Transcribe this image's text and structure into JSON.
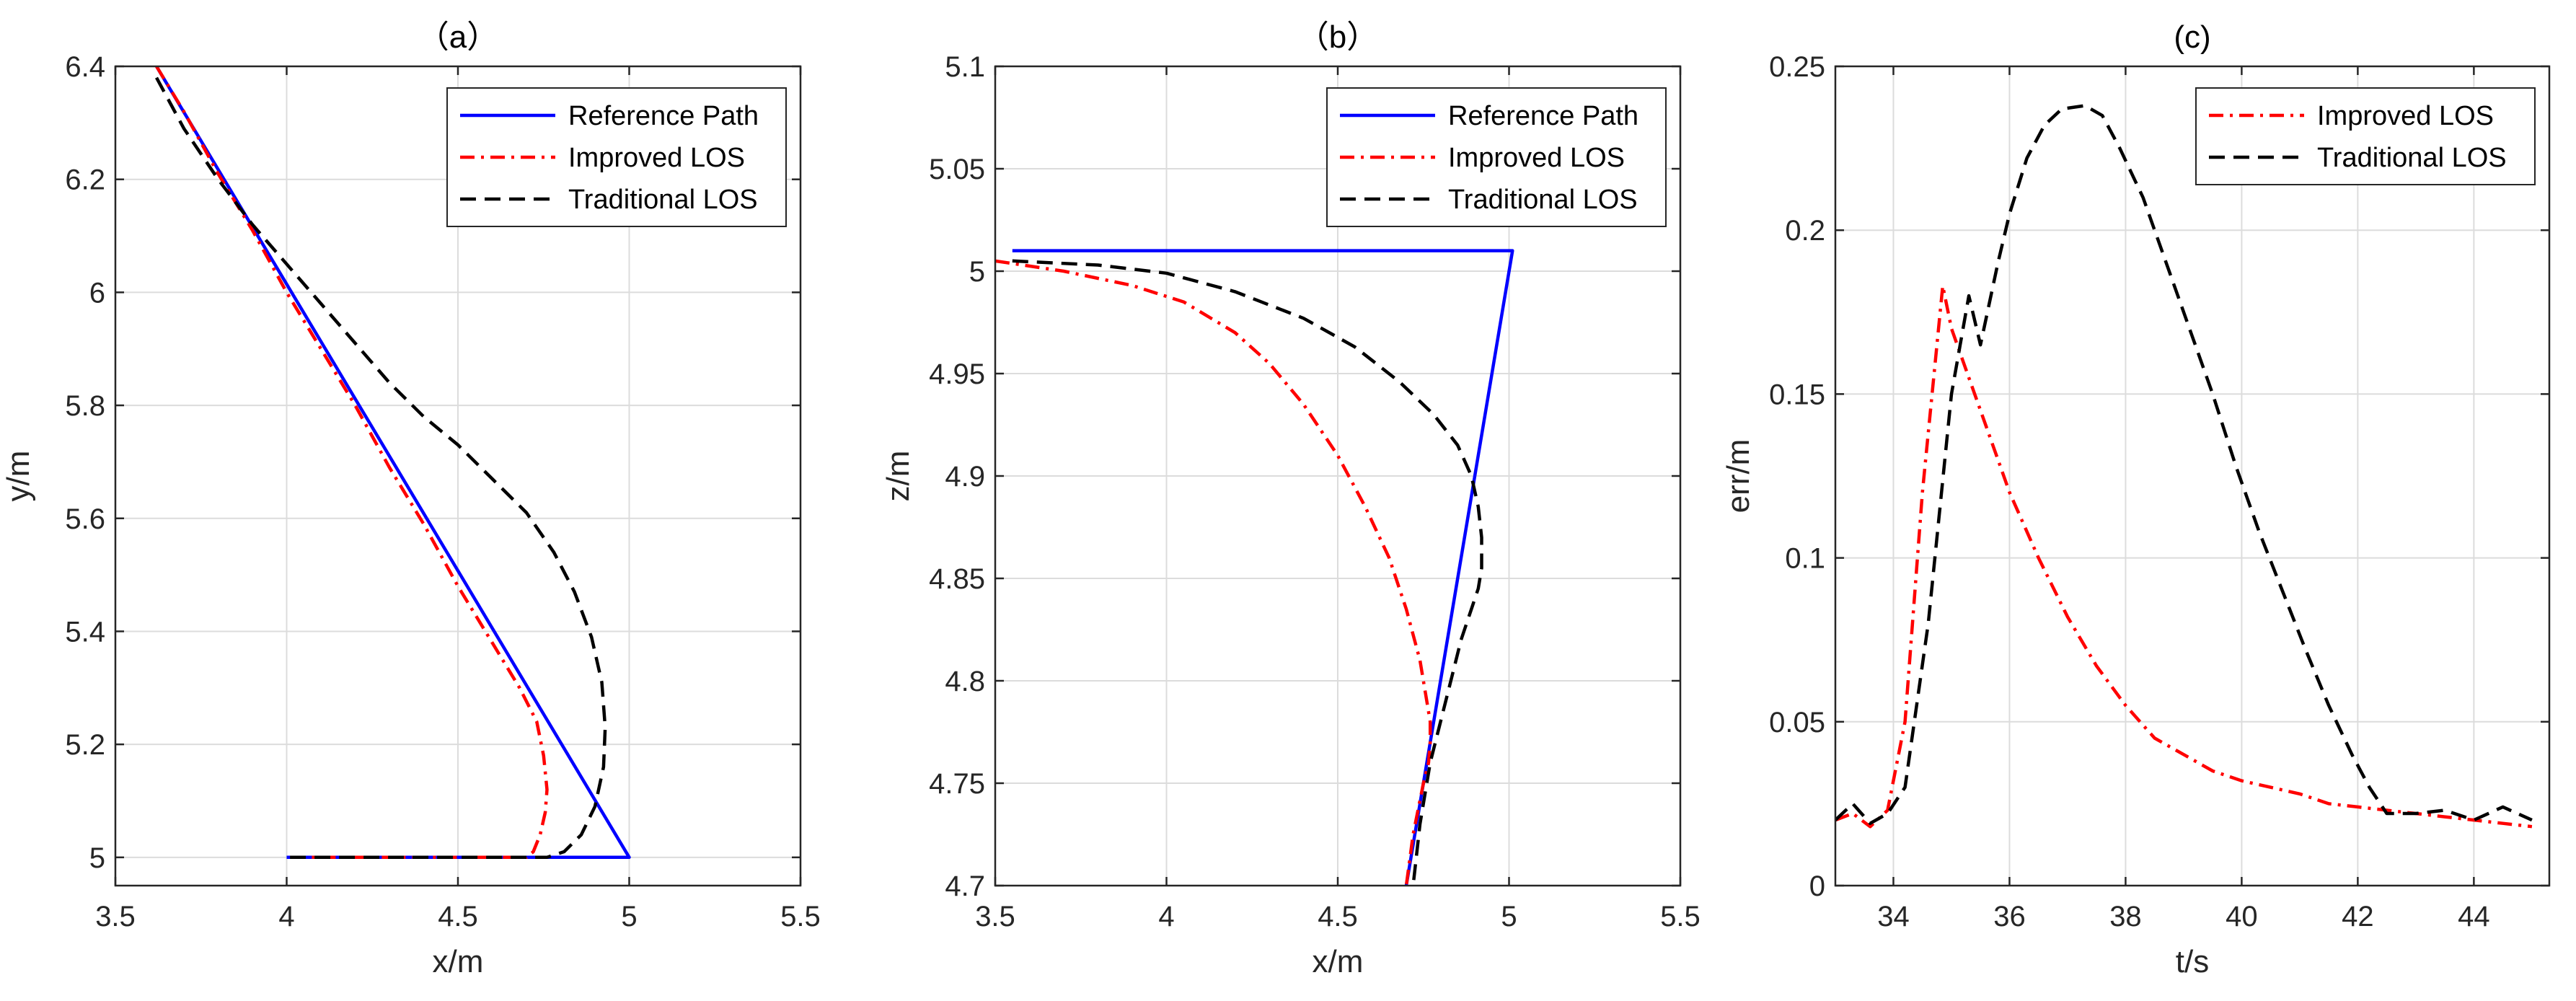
{
  "chart_data": [
    {
      "type": "line",
      "title": "（a）",
      "xlabel": "x/m",
      "ylabel": "y/m",
      "xlim": [
        3.5,
        5.5
      ],
      "ylim": [
        4.95,
        6.4
      ],
      "xticks": [
        "3.5",
        "4",
        "4.5",
        "5",
        "5.5"
      ],
      "yticks": [
        "5",
        "5.2",
        "5.4",
        "5.6",
        "5.8",
        "6",
        "6.2",
        "6.4"
      ],
      "legend": [
        "Reference Path",
        "Improved LOS",
        "Traditional LOS"
      ],
      "legend_position": "top-right",
      "grid": true,
      "series": [
        {
          "name": "Reference Path",
          "color": "#0000ff",
          "style": "solid",
          "x": [
            4.0,
            5.0,
            3.62
          ],
          "y": [
            5.0,
            5.0,
            6.4
          ]
        },
        {
          "name": "Improved LOS",
          "color": "#ff0000",
          "style": "dashdot",
          "x": [
            3.62,
            3.7,
            3.8,
            3.9,
            4.0,
            4.1,
            4.2,
            4.3,
            4.4,
            4.5,
            4.6,
            4.68,
            4.73,
            4.75,
            4.76,
            4.755,
            4.74,
            4.72,
            4.7,
            4.6,
            4.4,
            4.2,
            4.0
          ],
          "y": [
            6.4,
            6.32,
            6.21,
            6.11,
            6.0,
            5.9,
            5.8,
            5.69,
            5.59,
            5.48,
            5.38,
            5.3,
            5.24,
            5.18,
            5.12,
            5.08,
            5.04,
            5.01,
            5.0,
            5.0,
            5.0,
            5.0,
            5.0
          ]
        },
        {
          "name": "Traditional LOS",
          "color": "#000000",
          "style": "dashed",
          "x": [
            3.62,
            3.7,
            3.8,
            3.9,
            4.0,
            4.1,
            4.2,
            4.3,
            4.4,
            4.5,
            4.6,
            4.7,
            4.78,
            4.84,
            4.89,
            4.92,
            4.93,
            4.925,
            4.9,
            4.86,
            4.81,
            4.76,
            4.7,
            4.6,
            4.4,
            4.2,
            4.0
          ],
          "y": [
            6.38,
            6.29,
            6.2,
            6.12,
            6.05,
            5.98,
            5.91,
            5.84,
            5.78,
            5.73,
            5.67,
            5.61,
            5.54,
            5.47,
            5.39,
            5.31,
            5.23,
            5.16,
            5.09,
            5.04,
            5.01,
            5.0,
            5.0,
            5.0,
            5.0,
            5.0,
            5.0
          ]
        }
      ]
    },
    {
      "type": "line",
      "title": "（b）",
      "xlabel": "x/m",
      "ylabel": "z/m",
      "xlim": [
        3.5,
        5.5
      ],
      "ylim": [
        4.7,
        5.1
      ],
      "xticks": [
        "3.5",
        "4",
        "4.5",
        "5",
        "5.5"
      ],
      "yticks": [
        "4.7",
        "4.75",
        "4.8",
        "4.85",
        "4.9",
        "4.95",
        "5",
        "5.05",
        "5.1"
      ],
      "legend": [
        "Reference Path",
        "Improved LOS",
        "Traditional LOS"
      ],
      "legend_position": "top-right",
      "grid": true,
      "series": [
        {
          "name": "Reference Path",
          "color": "#0000ff",
          "style": "solid",
          "x": [
            3.55,
            5.01,
            4.7
          ],
          "y": [
            5.01,
            5.01,
            4.7
          ]
        },
        {
          "name": "Improved LOS",
          "color": "#ff0000",
          "style": "dashdot",
          "x": [
            3.5,
            3.7,
            3.9,
            4.05,
            4.2,
            4.3,
            4.4,
            4.5,
            4.58,
            4.65,
            4.7,
            4.74,
            4.76,
            4.77,
            4.77,
            4.765,
            4.75,
            4.72,
            4.7
          ],
          "y": [
            5.005,
            5.0,
            4.993,
            4.985,
            4.97,
            4.955,
            4.935,
            4.91,
            4.885,
            4.86,
            4.835,
            4.81,
            4.79,
            4.78,
            4.77,
            4.76,
            4.75,
            4.725,
            4.7
          ]
        },
        {
          "name": "Traditional LOS",
          "color": "#000000",
          "style": "dashed",
          "x": [
            3.55,
            3.8,
            4.0,
            4.2,
            4.4,
            4.55,
            4.68,
            4.78,
            4.85,
            4.89,
            4.91,
            4.92,
            4.92,
            4.91,
            4.89,
            4.86,
            4.83,
            4.8,
            4.77,
            4.74,
            4.72
          ],
          "y": [
            5.005,
            5.003,
            4.999,
            4.99,
            4.977,
            4.963,
            4.946,
            4.93,
            4.915,
            4.9,
            4.885,
            4.87,
            4.855,
            4.845,
            4.835,
            4.82,
            4.8,
            4.78,
            4.76,
            4.73,
            4.7
          ]
        }
      ]
    },
    {
      "type": "line",
      "title": "(c)",
      "xlabel": "t/s",
      "ylabel": "err/m",
      "xlim": [
        33,
        45.3
      ],
      "ylim": [
        0,
        0.25
      ],
      "xticks": [
        "34",
        "36",
        "38",
        "40",
        "42",
        "44"
      ],
      "yticks": [
        "0",
        "0.05",
        "0.1",
        "0.15",
        "0.2",
        "0.25"
      ],
      "legend": [
        "Improved LOS",
        "Traditional LOS"
      ],
      "legend_position": "top-right",
      "grid": true,
      "series": [
        {
          "name": "Improved LOS",
          "color": "#ff0000",
          "style": "dashdot",
          "x": [
            33.0,
            33.3,
            33.6,
            33.9,
            34.2,
            34.5,
            34.85,
            35.0,
            35.3,
            35.6,
            36.0,
            36.5,
            37.0,
            37.5,
            38.0,
            38.5,
            39.0,
            39.5,
            40.0,
            40.5,
            41.0,
            41.5,
            42.0,
            42.5,
            43.0,
            43.5,
            44.0,
            44.5,
            45.0
          ],
          "y": [
            0.02,
            0.022,
            0.018,
            0.023,
            0.05,
            0.12,
            0.183,
            0.17,
            0.155,
            0.14,
            0.12,
            0.1,
            0.082,
            0.067,
            0.055,
            0.045,
            0.04,
            0.035,
            0.032,
            0.03,
            0.028,
            0.025,
            0.024,
            0.023,
            0.022,
            0.021,
            0.02,
            0.019,
            0.018
          ]
        },
        {
          "name": "Traditional LOS",
          "color": "#000000",
          "style": "dashed",
          "x": [
            33.0,
            33.3,
            33.6,
            33.9,
            34.2,
            34.6,
            35.0,
            35.3,
            35.5,
            35.8,
            36.0,
            36.3,
            36.6,
            36.9,
            37.3,
            37.6,
            37.9,
            38.3,
            38.7,
            39.1,
            39.5,
            39.9,
            40.3,
            40.7,
            41.1,
            41.5,
            41.9,
            42.2,
            42.5,
            43.0,
            43.5,
            44.0,
            44.5,
            45.0
          ],
          "y": [
            0.02,
            0.025,
            0.019,
            0.022,
            0.03,
            0.08,
            0.15,
            0.18,
            0.165,
            0.19,
            0.205,
            0.222,
            0.232,
            0.237,
            0.238,
            0.235,
            0.225,
            0.21,
            0.19,
            0.17,
            0.15,
            0.128,
            0.108,
            0.09,
            0.072,
            0.055,
            0.04,
            0.03,
            0.022,
            0.022,
            0.023,
            0.02,
            0.024,
            0.02
          ]
        }
      ]
    }
  ]
}
